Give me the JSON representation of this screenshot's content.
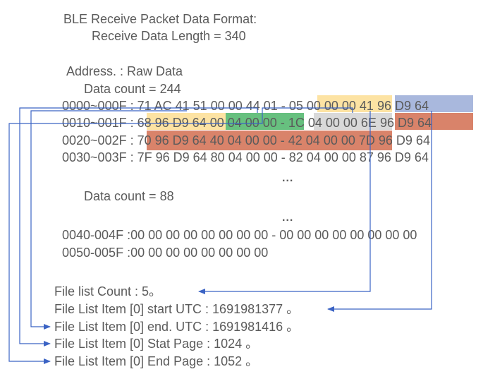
{
  "title": "BLE Receive Packet Data Format:",
  "receive_length": "Receive Data Length = 340",
  "address_header": "Address.  :  Raw Data",
  "data_count_1": "Data count = 244",
  "data_count_2": "Data count = 88",
  "ellipsis": "...",
  "rows": [
    {
      "addr": "0000~000F :",
      "b1": "71 AC 41 51 00 00 44 01",
      "sep": "-",
      "b2": "05 00 00 00",
      "b3": "41 96 D9 64"
    },
    {
      "addr": "0010~001F :",
      "b1": "68 96 D9 64",
      "b2": "00 04 00 00",
      "sep": "-",
      "b3": "1C 04 00 00",
      "b4": "6E 96 D9 64"
    },
    {
      "addr": "0020~002F :",
      "b1": "70 96 D9 64 40 04 00 00 - 42 04 00 00",
      "b2": "7D 96 D9 64"
    },
    {
      "addr": "0030~003F :",
      "b1": "7F 96 D9 64 80 04 00 00 - 82 04 00 00 87 96 D9 64"
    }
  ],
  "rows2": [
    "0040-004F :00 00 00 00 00 00 00 00 - 00 00 00 00 00 00 00 00",
    "0050-005F :00 00 00 00 00 00 00 00"
  ],
  "file_items": [
    "File list Count : 5。",
    "File List Item [0] start UTC : 1691981377 。",
    "File List Item [0] end. UTC : 1691981416 。",
    "File List Item [0] Stat Page : 1024 。",
    "File List Item [0] End Page : 1052 。"
  ],
  "colors": {
    "text": "#5b5b5b",
    "yellow": "#fde3a3",
    "blue": "#a9b8dd",
    "orange": "#d9836a",
    "green": "#67c07f",
    "gray": "#d9d9d9",
    "arrow": "#3b63c4"
  }
}
